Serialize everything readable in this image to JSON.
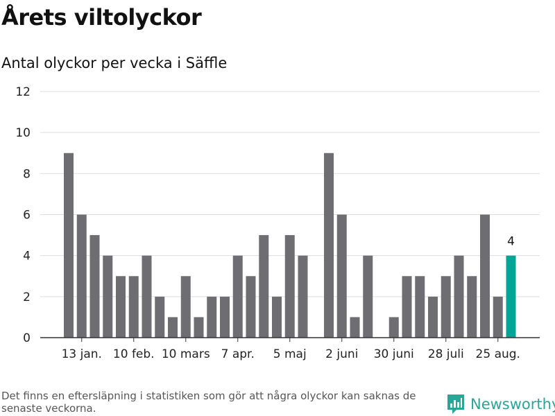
{
  "title": "Årets viltolyckor",
  "subtitle": "Antal olyckor per vecka i Säffle",
  "footnote": "Det finns en eftersläpning i statistiken som gör att några olyckor kan saknas de senaste veckorna.",
  "brand": {
    "name": "Newsworthy",
    "logo_icon": "newsworthy-logo-icon",
    "color": "#2aa598"
  },
  "chart_data": {
    "type": "bar",
    "values": [
      9,
      6,
      5,
      4,
      3,
      3,
      4,
      2,
      1,
      3,
      1,
      2,
      2,
      4,
      3,
      5,
      2,
      5,
      4,
      0,
      9,
      6,
      1,
      4,
      0,
      1,
      3,
      3,
      2,
      3,
      4,
      3,
      6,
      2,
      4
    ],
    "x_tick_labels": [
      {
        "index": 1,
        "label": "13 jan."
      },
      {
        "index": 5,
        "label": "10 feb."
      },
      {
        "index": 9,
        "label": "10 mars"
      },
      {
        "index": 13,
        "label": "7 apr."
      },
      {
        "index": 17,
        "label": "5 maj"
      },
      {
        "index": 21,
        "label": "2 juni"
      },
      {
        "index": 25,
        "label": "30 juni"
      },
      {
        "index": 29,
        "label": "28 juli"
      },
      {
        "index": 33,
        "label": "25 aug."
      }
    ],
    "y_ticks": [
      0,
      2,
      4,
      6,
      8,
      10,
      12
    ],
    "ylim": [
      0,
      12
    ],
    "grid": true,
    "highlight": {
      "index": 34,
      "label": "4"
    },
    "colors": {
      "bar": "#6e6d72",
      "highlight": "#00a596",
      "grid": "#dddddd",
      "axis": "#333333"
    }
  }
}
